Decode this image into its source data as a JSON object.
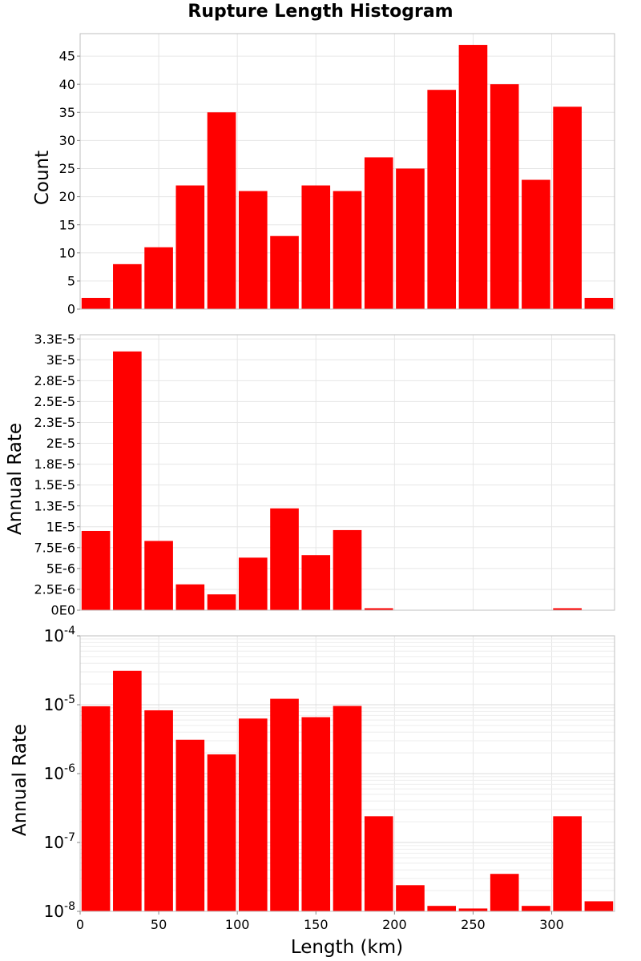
{
  "chart_data": {
    "type": "bar",
    "title": "Rupture Length Histogram",
    "xlabel": "Length (km)",
    "xlim": [
      0,
      340
    ],
    "x_ticks": [
      0,
      50,
      100,
      150,
      200,
      250,
      300
    ],
    "bin_width": 20,
    "bin_starts": [
      0,
      20,
      40,
      60,
      80,
      100,
      120,
      140,
      160,
      180,
      200,
      220,
      240,
      260,
      280,
      300,
      320
    ],
    "bar_color": "#ff0000",
    "grid": true,
    "panels": [
      {
        "ylabel": "Count",
        "scale": "linear",
        "ylim": [
          0,
          49
        ],
        "y_ticks": [
          0,
          5,
          10,
          15,
          20,
          25,
          30,
          35,
          40,
          45
        ],
        "y_tick_labels": [
          "0",
          "5",
          "10",
          "15",
          "20",
          "25",
          "30",
          "35",
          "40",
          "45"
        ],
        "values": [
          2,
          8,
          11,
          22,
          35,
          21,
          13,
          22,
          21,
          27,
          25,
          39,
          47,
          40,
          23,
          36,
          2
        ]
      },
      {
        "ylabel": "Annual Rate",
        "scale": "linear",
        "ylim": [
          0,
          3.3e-05
        ],
        "y_ticks": [
          0,
          2.5e-06,
          5e-06,
          7.5e-06,
          1e-05,
          1.25e-05,
          1.5e-05,
          1.75e-05,
          2e-05,
          2.25e-05,
          2.5e-05,
          2.75e-05,
          3e-05,
          3.25e-05
        ],
        "y_tick_labels": [
          "0E0",
          "2.5E-6",
          "5E-6",
          "7.5E-6",
          "1E-5",
          "1.3E-5",
          "1.5E-5",
          "1.8E-5",
          "2E-5",
          "2.3E-5",
          "2.5E-5",
          "2.8E-5",
          "3E-5",
          "3.3E-5"
        ],
        "values": [
          9.5e-06,
          3.1e-05,
          8.3e-06,
          3.1e-06,
          1.9e-06,
          6.3e-06,
          1.22e-05,
          6.6e-06,
          9.6e-06,
          2.4e-07,
          2.4e-08,
          1.2e-08,
          1.1e-08,
          3.5e-08,
          1.2e-08,
          2.4e-07,
          1.4e-08
        ]
      },
      {
        "ylabel": "Annual Rate",
        "scale": "log",
        "ylim": [
          1e-08,
          0.0001
        ],
        "y_ticks": [
          1e-08,
          1e-07,
          1e-06,
          1e-05,
          0.0001
        ],
        "y_tick_labels": [
          {
            "base": "10",
            "exp": "-8"
          },
          {
            "base": "10",
            "exp": "-7"
          },
          {
            "base": "10",
            "exp": "-6"
          },
          {
            "base": "10",
            "exp": "-5"
          },
          {
            "base": "10",
            "exp": "-4"
          }
        ],
        "values": [
          9.5e-06,
          3.1e-05,
          8.3e-06,
          3.1e-06,
          1.9e-06,
          6.3e-06,
          1.22e-05,
          6.6e-06,
          9.6e-06,
          2.4e-07,
          2.4e-08,
          1.2e-08,
          1.1e-08,
          3.5e-08,
          1.2e-08,
          2.4e-07,
          1.4e-08
        ]
      }
    ]
  }
}
